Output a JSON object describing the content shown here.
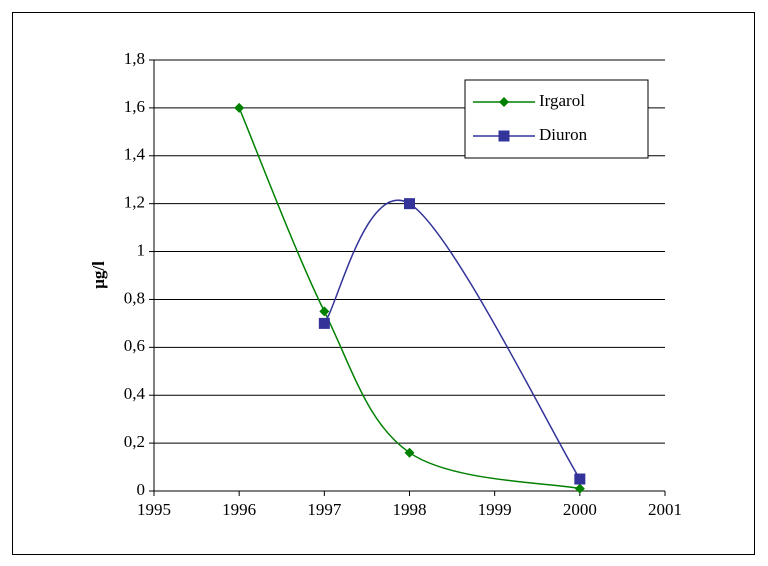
{
  "chart_data": {
    "type": "line",
    "y_label": "µg/l",
    "xlim": [
      1995,
      2001
    ],
    "xticks": [
      1995,
      1996,
      1997,
      1998,
      1999,
      2000,
      2001
    ],
    "ylim": [
      0,
      1.8
    ],
    "yticks": [
      0,
      {
        "value": 0.2,
        "label": "0,2"
      },
      {
        "value": 0.4,
        "label": "0,4"
      },
      {
        "value": 0.6,
        "label": "0,6"
      },
      {
        "value": 0.8,
        "label": "0,8"
      },
      1,
      {
        "value": 1.2,
        "label": "1,2"
      },
      {
        "value": 1.4,
        "label": "1,4"
      },
      {
        "value": 1.6,
        "label": "1,6"
      },
      {
        "value": 1.8,
        "label": "1,8"
      }
    ],
    "grid": true,
    "smooth": true,
    "legend": "top-right",
    "series": [
      {
        "name": "Irgarol",
        "color": "#008000",
        "marker": "diamond",
        "x": [
          1996,
          1997,
          1998,
          2000
        ],
        "values": [
          1.6,
          0.75,
          0.16,
          0.01
        ]
      },
      {
        "name": "Diuron",
        "color": "#333399",
        "marker": "square",
        "x": [
          1997,
          1998,
          2000
        ],
        "values": [
          0.7,
          1.2,
          0.05
        ]
      }
    ]
  }
}
